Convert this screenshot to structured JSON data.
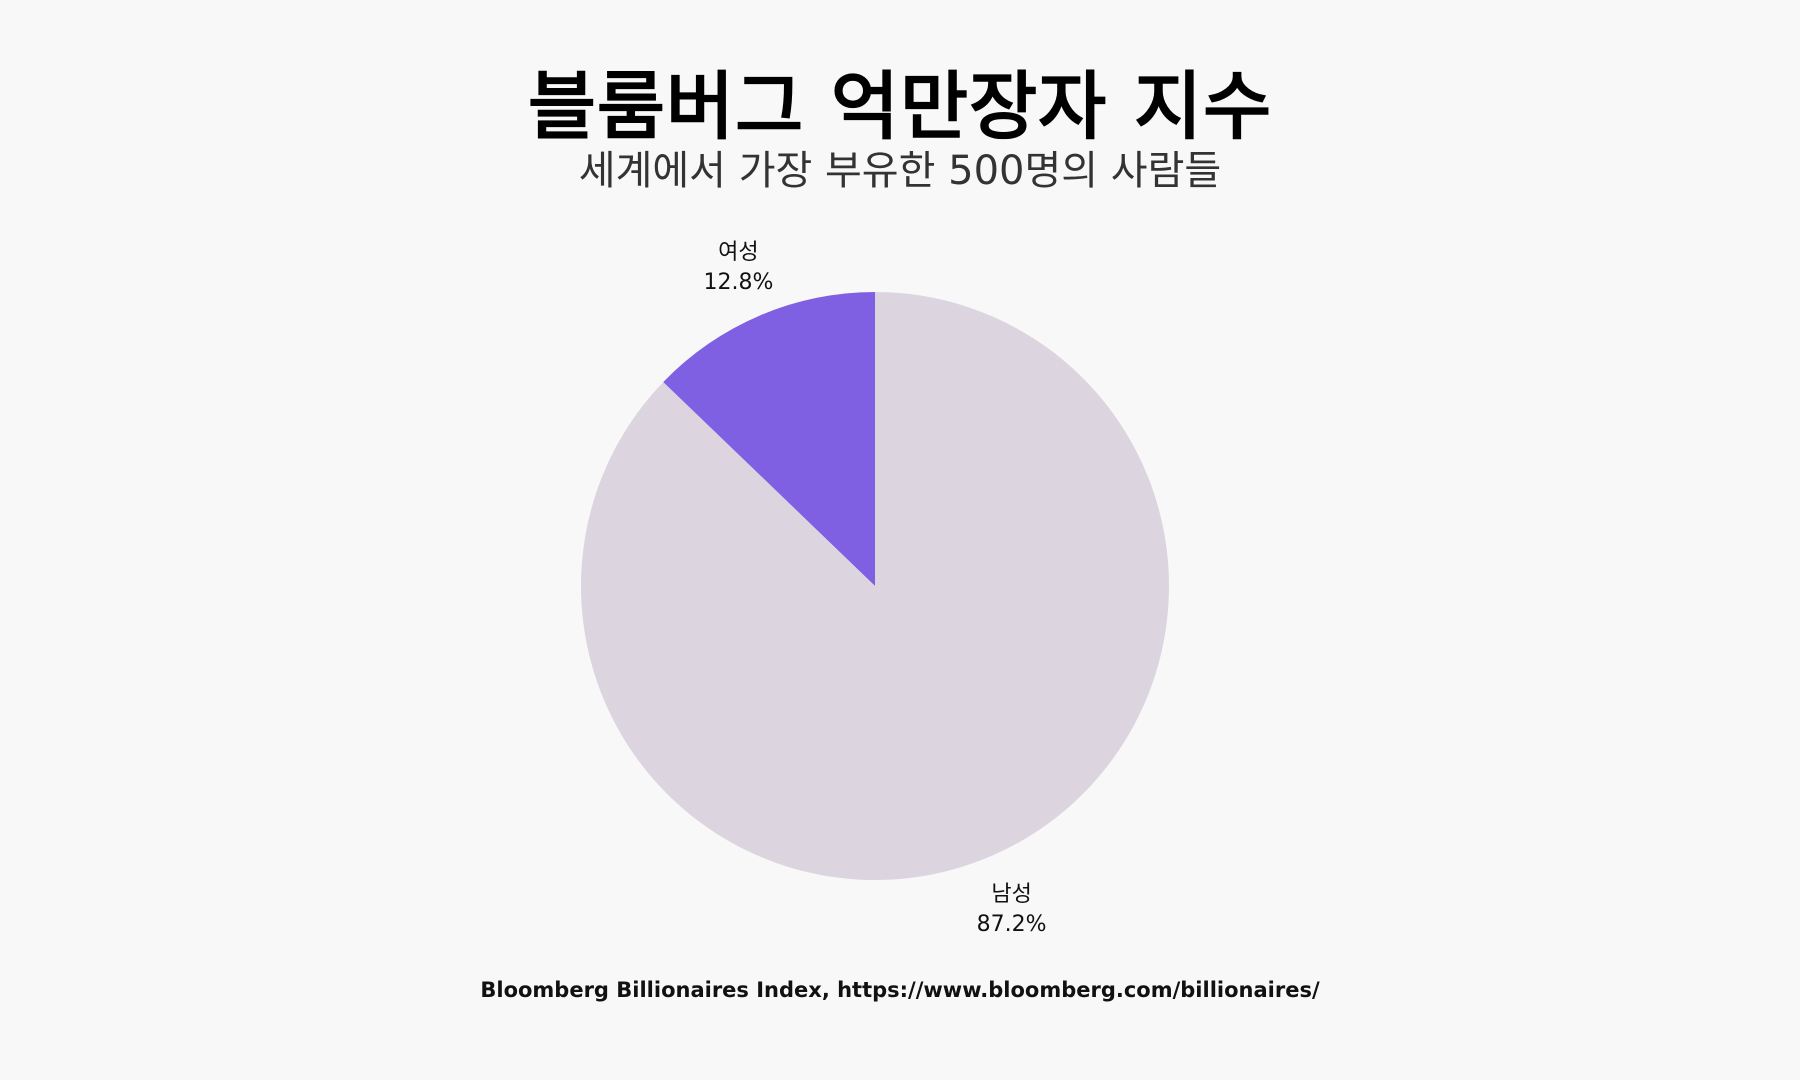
{
  "chart_data": {
    "type": "pie",
    "title": "블룸버그 억만장자 지수",
    "subtitle": "세계에서 가장 부유한 500명의 사람들",
    "slices": [
      {
        "label": "여성",
        "value": 12.8,
        "value_label": "12.8%",
        "color": "#7f60e3"
      },
      {
        "label": "남성",
        "value": 87.2,
        "value_label": "87.2%",
        "color": "#dcd5e0"
      }
    ],
    "source": "Bloomberg Billionaires Index, https://www.bloomberg.com/billionaires/"
  }
}
